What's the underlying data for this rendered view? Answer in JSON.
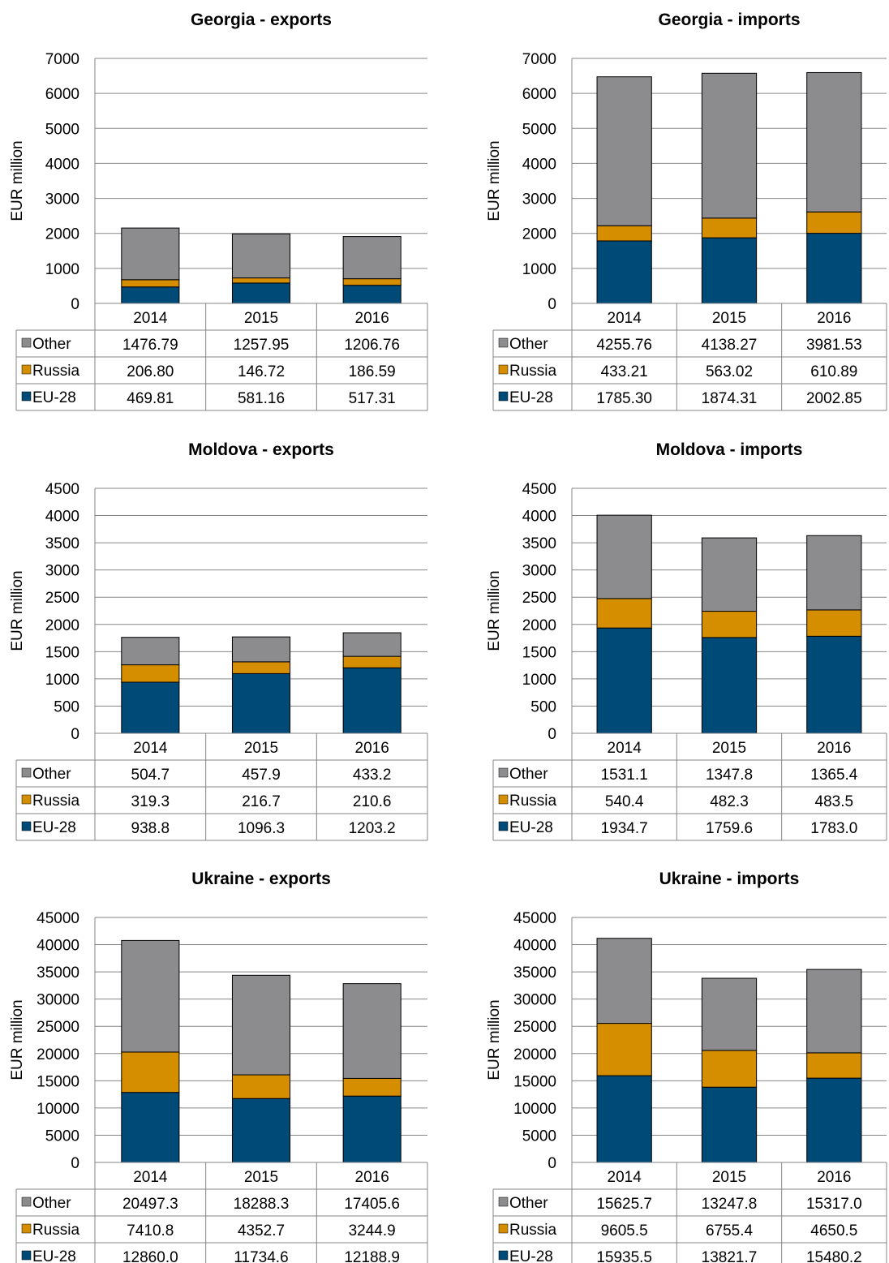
{
  "colors": {
    "Other": "#8c8c8f",
    "Russia": "#d58e00",
    "EU-28": "#004a78"
  },
  "chart_data": [
    {
      "type": "bar",
      "stacked": true,
      "title": "Georgia - exports",
      "ylabel": "EUR million",
      "ylim": [
        0,
        7000
      ],
      "yticks": [
        "0",
        "1000",
        "2000",
        "3000",
        "4000",
        "5000",
        "6000",
        "7000"
      ],
      "categories": [
        "2014",
        "2015",
        "2016"
      ],
      "series": [
        {
          "name": "EU-28",
          "values": [
            469.81,
            581.16,
            517.31
          ],
          "labels": [
            "469.81",
            "581.16",
            "517.31"
          ]
        },
        {
          "name": "Russia",
          "values": [
            206.8,
            146.72,
            186.59
          ],
          "labels": [
            "206.80",
            "146.72",
            "186.59"
          ]
        },
        {
          "name": "Other",
          "values": [
            1476.79,
            1257.95,
            1206.76
          ],
          "labels": [
            "1476.79",
            "1257.95",
            "1206.76"
          ]
        }
      ]
    },
    {
      "type": "bar",
      "stacked": true,
      "title": "Georgia - imports",
      "ylabel": "EUR million",
      "ylim": [
        0,
        7000
      ],
      "yticks": [
        "0",
        "1000",
        "2000",
        "3000",
        "4000",
        "5000",
        "6000",
        "7000"
      ],
      "categories": [
        "2014",
        "2015",
        "2016"
      ],
      "series": [
        {
          "name": "EU-28",
          "values": [
            1785.3,
            1874.31,
            2002.85
          ],
          "labels": [
            "1785.30",
            "1874.31",
            "2002.85"
          ]
        },
        {
          "name": "Russia",
          "values": [
            433.21,
            563.02,
            610.89
          ],
          "labels": [
            "433.21",
            "563.02",
            "610.89"
          ]
        },
        {
          "name": "Other",
          "values": [
            4255.76,
            4138.27,
            3981.53
          ],
          "labels": [
            "4255.76",
            "4138.27",
            "3981.53"
          ]
        }
      ]
    },
    {
      "type": "bar",
      "stacked": true,
      "title": "Moldova - exports",
      "ylabel": "EUR million",
      "ylim": [
        0,
        4500
      ],
      "yticks": [
        "0",
        "500",
        "1000",
        "1500",
        "2000",
        "2500",
        "3000",
        "3500",
        "4000",
        "4500"
      ],
      "categories": [
        "2014",
        "2015",
        "2016"
      ],
      "series": [
        {
          "name": "EU-28",
          "values": [
            938.8,
            1096.3,
            1203.2
          ],
          "labels": [
            "938.8",
            "1096.3",
            "1203.2"
          ]
        },
        {
          "name": "Russia",
          "values": [
            319.3,
            216.7,
            210.6
          ],
          "labels": [
            "319.3",
            "216.7",
            "210.6"
          ]
        },
        {
          "name": "Other",
          "values": [
            504.7,
            457.9,
            433.2
          ],
          "labels": [
            "504.7",
            "457.9",
            "433.2"
          ]
        }
      ]
    },
    {
      "type": "bar",
      "stacked": true,
      "title": "Moldova - imports",
      "ylabel": "EUR million",
      "ylim": [
        0,
        4500
      ],
      "yticks": [
        "0",
        "500",
        "1000",
        "1500",
        "2000",
        "2500",
        "3000",
        "3500",
        "4000",
        "4500"
      ],
      "categories": [
        "2014",
        "2015",
        "2016"
      ],
      "series": [
        {
          "name": "EU-28",
          "values": [
            1934.7,
            1759.6,
            1783.0
          ],
          "labels": [
            "1934.7",
            "1759.6",
            "1783.0"
          ]
        },
        {
          "name": "Russia",
          "values": [
            540.4,
            482.3,
            483.5
          ],
          "labels": [
            "540.4",
            "482.3",
            "483.5"
          ]
        },
        {
          "name": "Other",
          "values": [
            1531.1,
            1347.8,
            1365.4
          ],
          "labels": [
            "1531.1",
            "1347.8",
            "1365.4"
          ]
        }
      ]
    },
    {
      "type": "bar",
      "stacked": true,
      "title": "Ukraine - exports",
      "ylabel": "EUR million",
      "ylim": [
        0,
        45000
      ],
      "yticks": [
        "0",
        "5000",
        "10000",
        "15000",
        "20000",
        "25000",
        "30000",
        "35000",
        "40000",
        "45000"
      ],
      "categories": [
        "2014",
        "2015",
        "2016"
      ],
      "series": [
        {
          "name": "EU-28",
          "values": [
            12860.0,
            11734.6,
            12188.9
          ],
          "labels": [
            "12860.0",
            "11734.6",
            "12188.9"
          ]
        },
        {
          "name": "Russia",
          "values": [
            7410.8,
            4352.7,
            3244.9
          ],
          "labels": [
            "7410.8",
            "4352.7",
            "3244.9"
          ]
        },
        {
          "name": "Other",
          "values": [
            20497.3,
            18288.3,
            17405.6
          ],
          "labels": [
            "20497.3",
            "18288.3",
            "17405.6"
          ]
        }
      ]
    },
    {
      "type": "bar",
      "stacked": true,
      "title": "Ukraine - imports",
      "ylabel": "EUR million",
      "ylim": [
        0,
        45000
      ],
      "yticks": [
        "0",
        "5000",
        "10000",
        "15000",
        "20000",
        "25000",
        "30000",
        "35000",
        "40000",
        "45000"
      ],
      "categories": [
        "2014",
        "2015",
        "2016"
      ],
      "series": [
        {
          "name": "EU-28",
          "values": [
            15935.5,
            13821.7,
            15480.2
          ],
          "labels": [
            "15935.5",
            "13821.7",
            "15480.2"
          ]
        },
        {
          "name": "Russia",
          "values": [
            9605.5,
            6755.4,
            4650.5
          ],
          "labels": [
            "9605.5",
            "6755.4",
            "4650.5"
          ]
        },
        {
          "name": "Other",
          "values": [
            15625.7,
            13247.8,
            15317.0
          ],
          "labels": [
            "15625.7",
            "13247.8",
            "15317.0"
          ]
        }
      ]
    }
  ]
}
